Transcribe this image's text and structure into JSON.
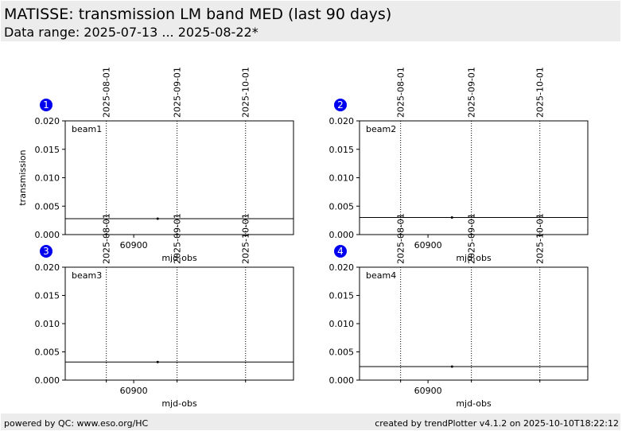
{
  "header": {
    "title": "MATISSE: transmission LM band MED (last 90 days)",
    "subtitle": "Data range: 2025-07-13 ... 2025-08-22*"
  },
  "footer": {
    "left": "powered by QC: www.eso.org/HC",
    "right": "created by trendPlotter v4.1.2 on 2025-10-10T18:22:12"
  },
  "colors": {
    "badge": "#0000ee",
    "header_bg": "#ececec",
    "line": "#000000"
  },
  "chart_data": [
    {
      "type": "scatter",
      "badge": "1",
      "label": "beam1",
      "xlabel": "mjd-obs",
      "ylabel": "transmission",
      "ylim": [
        0.0,
        0.02
      ],
      "xlim": [
        60870,
        60970
      ],
      "yticks": [
        "0.020",
        "0.015",
        "0.010",
        "0.005",
        "0.000"
      ],
      "xticks": [
        60900
      ],
      "xtick_labels": [
        "60900"
      ],
      "date_lines": [
        "2025-08-01",
        "2025-09-01",
        "2025-10-01"
      ],
      "points": [
        {
          "x": 60910.5,
          "y": 0.0028
        }
      ],
      "hline": 0.0028
    },
    {
      "type": "scatter",
      "badge": "2",
      "label": "beam2",
      "xlabel": "mjd-obs",
      "ylabel": "",
      "ylim": [
        0.0,
        0.02
      ],
      "xlim": [
        60870,
        60970
      ],
      "yticks": [
        "0.020",
        "0.015",
        "0.010",
        "0.005",
        "0.000"
      ],
      "xticks": [
        60900
      ],
      "xtick_labels": [
        "60900"
      ],
      "date_lines": [
        "2025-08-01",
        "2025-09-01",
        "2025-10-01"
      ],
      "points": [
        {
          "x": 60910.5,
          "y": 0.003
        }
      ],
      "hline": 0.003
    },
    {
      "type": "scatter",
      "badge": "3",
      "label": "beam3",
      "xlabel": "mjd-obs",
      "ylabel": "",
      "ylim": [
        0.0,
        0.02
      ],
      "xlim": [
        60870,
        60970
      ],
      "yticks": [
        "0.020",
        "0.015",
        "0.010",
        "0.005",
        "0.000"
      ],
      "xticks": [
        60900
      ],
      "xtick_labels": [
        "60900"
      ],
      "date_lines": [
        "2025-08-01",
        "2025-09-01",
        "2025-10-01"
      ],
      "points": [
        {
          "x": 60910.5,
          "y": 0.0032
        }
      ],
      "hline": 0.0032
    },
    {
      "type": "scatter",
      "badge": "4",
      "label": "beam4",
      "xlabel": "mjd-obs",
      "ylabel": "",
      "ylim": [
        0.0,
        0.02
      ],
      "xlim": [
        60870,
        60970
      ],
      "yticks": [
        "0.020",
        "0.015",
        "0.010",
        "0.005",
        "0.000"
      ],
      "xticks": [
        60900
      ],
      "xtick_labels": [
        "60900"
      ],
      "date_lines": [
        "2025-08-01",
        "2025-09-01",
        "2025-10-01"
      ],
      "points": [
        {
          "x": 60910.5,
          "y": 0.0024
        }
      ],
      "hline": 0.0024
    }
  ]
}
